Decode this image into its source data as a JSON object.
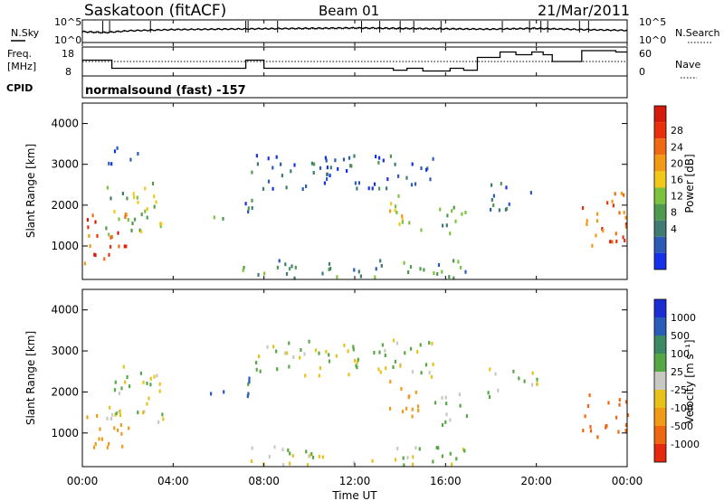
{
  "header": {
    "radar": "Saskatoon (fitACF)",
    "beam": "Beam 01",
    "date": "21/Mar/2011"
  },
  "top_panels": {
    "nsky_label": "N.Sky",
    "nsearch_label": "N.Search",
    "noise_ticks_left": [
      "10^5",
      "10^0"
    ],
    "noise_ticks_right": [
      "10^5",
      "10^0"
    ],
    "freq_label_1": "Freq.",
    "freq_label_2": "[MHz]",
    "freq_ticks": [
      "18",
      "8"
    ],
    "nave_ticks": [
      "60",
      "0"
    ],
    "nave_label": "Nave",
    "cpid_label": "CPID",
    "cpid_text": "normalsound (fast) -157"
  },
  "colors": {
    "power_scale": [
      "#1430e8",
      "#2d5ab4",
      "#3f7a73",
      "#4f9a4e",
      "#7dc23e",
      "#f2c91a",
      "#f29a14",
      "#ef6a12",
      "#e8300f",
      "#d41a0a"
    ],
    "velocity_scale": [
      "#1a2ed2",
      "#2a5db8",
      "#3c8a64",
      "#56a845",
      "#c9c9c3",
      "#e8c21a",
      "#f09a18",
      "#ef6612",
      "#e52810"
    ],
    "gray": "#c4c4be"
  },
  "chart_data": [
    {
      "type": "line",
      "panel": "noise",
      "series": [
        {
          "name": "N.Sky",
          "x": [
            "00:00",
            "01:00",
            "02:00",
            "04:00",
            "06:00",
            "08:00",
            "10:00",
            "12:00",
            "14:00",
            "16:00",
            "18:00",
            "20:00",
            "22:00",
            "24:00"
          ],
          "values": [
            2.4,
            2.2,
            2.6,
            2.9,
            3.0,
            3.1,
            3.2,
            3.3,
            3.2,
            3.1,
            3.0,
            3.2,
            2.9,
            2.7
          ]
        },
        {
          "name": "N.Search",
          "x": [
            "00:00",
            "01:00",
            "02:00",
            "04:00",
            "06:00",
            "08:00",
            "10:00",
            "12:00",
            "14:00",
            "16:00",
            "18:00",
            "20:00",
            "22:00",
            "24:00"
          ],
          "values": [
            2.2,
            2.0,
            2.5,
            2.8,
            2.9,
            3.0,
            3.0,
            3.1,
            3.0,
            2.9,
            2.9,
            3.0,
            2.8,
            2.6
          ]
        }
      ],
      "yscale": "log",
      "ylim": [
        "10^0",
        "10^5"
      ]
    },
    {
      "type": "line",
      "panel": "frequency",
      "series": [
        {
          "name": "Freq.",
          "x": [
            0,
            1.3,
            5.3,
            7.2,
            8.0,
            10.0,
            13.7,
            14.3,
            15.0,
            16.2,
            16.8,
            17.4,
            18.4,
            19.1,
            19.8,
            20.3,
            20.7,
            21.8,
            22.0,
            23.5,
            24.0
          ],
          "values": [
            13.5,
            10.5,
            10.5,
            13.5,
            10.5,
            10.5,
            9.8,
            10.5,
            9.5,
            10.5,
            9.8,
            14.5,
            16.5,
            15.5,
            16.5,
            15.5,
            13.0,
            13.0,
            17.0,
            16.5,
            16.5
          ]
        },
        {
          "name": "Nave",
          "values": [
            30,
            30
          ]
        }
      ],
      "ylim": [
        8,
        18
      ],
      "y2lim": [
        0,
        60
      ]
    },
    {
      "type": "heatmap",
      "panel": "power",
      "x": [
        "00:00",
        "04:00",
        "08:00",
        "12:00",
        "16:00",
        "20:00",
        "00:00"
      ],
      "y": [
        1000,
        2000,
        3000,
        4000
      ],
      "ylim": [
        180,
        4500
      ],
      "ylabel": "Slant Range [km]",
      "colorbar": {
        "label": "Power [dB]",
        "ticks": [
          4,
          8,
          12,
          16,
          20,
          24,
          28
        ]
      },
      "regions": [
        {
          "t": [
            0.0,
            2.0
          ],
          "r": [
            600,
            1900
          ],
          "value": 26
        },
        {
          "t": [
            1.0,
            3.7
          ],
          "r": [
            1300,
            2600
          ],
          "value": 14
        },
        {
          "t": [
            1.0,
            2.5
          ],
          "r": [
            3000,
            3500
          ],
          "value": 6
        },
        {
          "t": [
            5.6,
            6.2
          ],
          "r": [
            1700,
            2100
          ],
          "value": 10
        },
        {
          "t": [
            7.0,
            7.5
          ],
          "r": [
            1200,
            2400
          ],
          "value": 8
        },
        {
          "t": [
            7.4,
            15.5
          ],
          "r": [
            2400,
            3300
          ],
          "value": 6
        },
        {
          "t": [
            13.5,
            15.0
          ],
          "r": [
            1400,
            2300
          ],
          "value": 17
        },
        {
          "t": [
            15.3,
            16.9
          ],
          "r": [
            1300,
            2000
          ],
          "value": 12
        },
        {
          "t": [
            17.8,
            19.8
          ],
          "r": [
            1900,
            2600
          ],
          "value": 8
        },
        {
          "t": [
            22.0,
            24.0
          ],
          "r": [
            900,
            2400
          ],
          "value": 24
        },
        {
          "t": [
            7.0,
            17.0
          ],
          "r": [
            250,
            700
          ],
          "value": 10
        }
      ]
    },
    {
      "type": "heatmap",
      "panel": "velocity",
      "x": [
        "00:00",
        "04:00",
        "08:00",
        "12:00",
        "16:00",
        "20:00",
        "00:00"
      ],
      "y": [
        1000,
        2000,
        3000,
        4000
      ],
      "ylim": [
        180,
        4500
      ],
      "ylabel": "Slant Range [km]",
      "xlabel": "Time UT",
      "colorbar": {
        "label": "Velocity [m s⁻¹]",
        "ticks": [
          1000,
          500,
          100,
          25,
          -25,
          -100,
          -500,
          -1000
        ]
      },
      "regions": [
        {
          "t": [
            0.0,
            2.0
          ],
          "r": [
            600,
            1500
          ],
          "value": -300
        },
        {
          "t": [
            1.0,
            3.8
          ],
          "r": [
            1300,
            2700
          ],
          "value": 0
        },
        {
          "t": [
            5.6,
            6.2
          ],
          "r": [
            1700,
            2100
          ],
          "value": 200
        },
        {
          "t": [
            7.0,
            7.5
          ],
          "r": [
            1200,
            2400
          ],
          "value": 150
        },
        {
          "t": [
            7.4,
            15.5
          ],
          "r": [
            2400,
            3300
          ],
          "value": 0
        },
        {
          "t": [
            13.5,
            15.0
          ],
          "r": [
            1400,
            2300
          ],
          "value": -200
        },
        {
          "t": [
            15.3,
            16.9
          ],
          "r": [
            1200,
            2000
          ],
          "value": 0
        },
        {
          "t": [
            17.8,
            20.0
          ],
          "r": [
            1900,
            2600
          ],
          "value": 0
        },
        {
          "t": [
            22.0,
            24.0
          ],
          "r": [
            900,
            2000
          ],
          "value": -800
        },
        {
          "t": [
            7.0,
            17.0
          ],
          "r": [
            250,
            700
          ],
          "value": 0
        }
      ]
    }
  ],
  "axes": {
    "y_ticks": [
      "1000",
      "2000",
      "3000",
      "4000"
    ],
    "x_ticks": [
      "00:00",
      "04:00",
      "08:00",
      "12:00",
      "16:00",
      "20:00",
      "00:00"
    ],
    "xlabel": "Time UT",
    "ylabel": "Slant Range [km]",
    "power_label": "Power [dB]",
    "velocity_label": "Velocity [m s⁻¹]",
    "power_ticks": [
      "28",
      "24",
      "20",
      "16",
      "12",
      "8",
      "4"
    ],
    "velocity_ticks": [
      "1000",
      "500",
      "100",
      "25",
      "-25",
      "-100",
      "-500",
      "-1000"
    ]
  }
}
